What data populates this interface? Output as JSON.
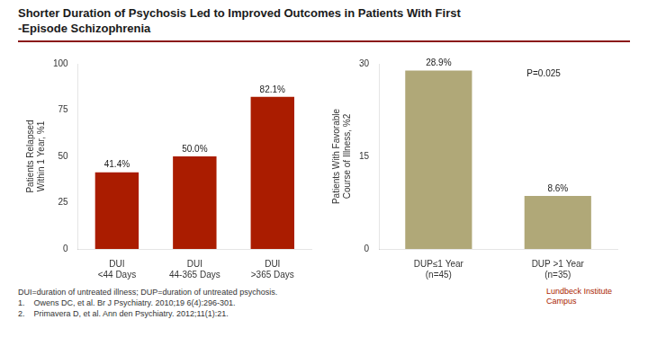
{
  "title": "Shorter Duration of Psychosis Led to Improved Outcomes in Patients With First\n-Episode Schizophrenia",
  "footnotes": [
    "DUI=duration of untreated illness; DUP=duration of untreated psychosis.",
    "1.    Owens DC, et al. Br J Psychiatry. 2010;19 6(4):296-301.",
    "2.    Primavera D, et al. Ann den Psychiatry. 2012;11(1):21."
  ],
  "annotations": [
    "Lundbeck Institute\nCampus"
  ],
  "chart_data": [
    {
      "type": "bar",
      "categories": [
        "DUI\n<44 Days",
        "DUI\n44-365 Days",
        "DUI\n>365 Days"
      ],
      "values": [
        41.4,
        50.0,
        82.1
      ],
      "value_labels": [
        "41.4%",
        "50.0%",
        "82.1%"
      ],
      "data_labels": true,
      "color": "#AA1C00",
      "ylabel": "Patients Relapsed\nWithin 1 Year, %1",
      "ylim": [
        0,
        100
      ],
      "yticks": [
        0,
        25,
        50,
        75,
        100
      ],
      "grid": false
    },
    {
      "type": "bar",
      "categories": [
        "DUP≤1 Year\n(n=45)",
        "DUP >1 Year\n(n=35)"
      ],
      "values": [
        28.9,
        8.6
      ],
      "value_labels": [
        "28.9%",
        "8.6%"
      ],
      "data_labels": true,
      "color": "#B0A878",
      "ylabel": "Patients With Favorable\nCourse of Illness, %2",
      "ylim": [
        0,
        30
      ],
      "yticks": [
        0,
        15,
        30
      ],
      "annotations": [
        "P=0.025"
      ],
      "grid": false
    }
  ]
}
